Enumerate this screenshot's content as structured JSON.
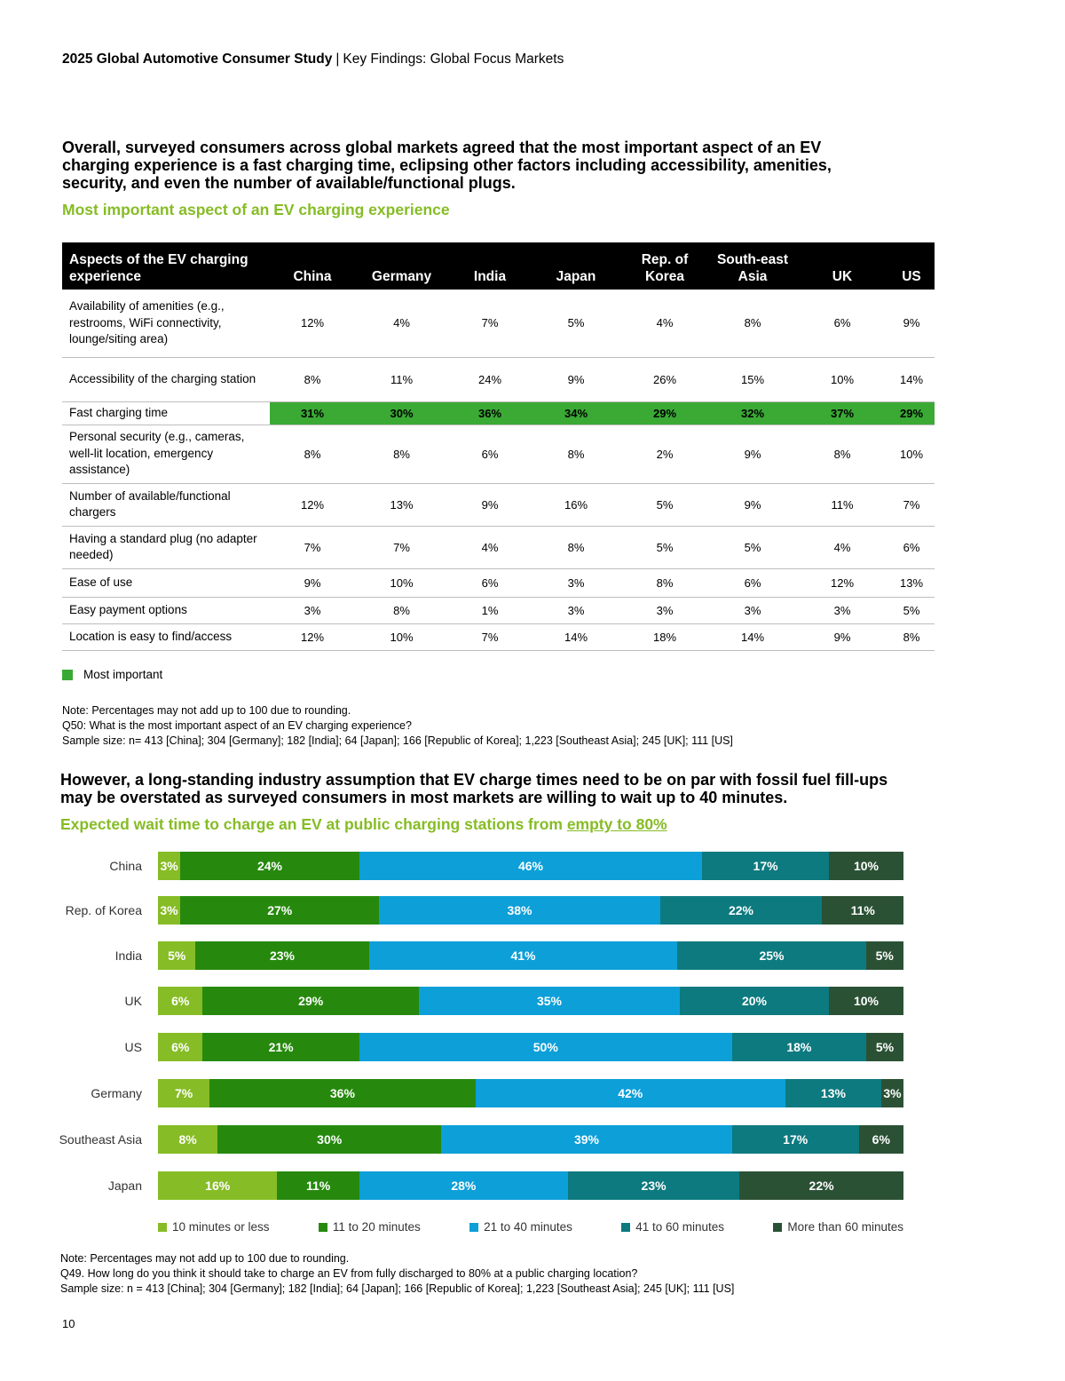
{
  "header": {
    "study": "2025 Global Automotive Consumer Study",
    "separator": "|",
    "section": "Key Findings: Global Focus Markets"
  },
  "intro1": "Overall, surveyed consumers across global markets agreed that the most important aspect of an EV charging experience is a fast charging time, eclipsing other factors including accessibility, amenities, security, and even the number of available/functional plugs.",
  "table_title": "Most important aspect of an EV charging experience",
  "table": {
    "header_first": "Aspects of the EV charging experience",
    "columns": [
      "China",
      "Germany",
      "India",
      "Japan",
      "Rep. of Korea",
      "South-east Asia",
      "UK",
      "US"
    ],
    "rows": [
      {
        "label": "Availability of amenities (e.g., restrooms, WiFi connectivity, lounge/siting area)",
        "values": [
          "12%",
          "4%",
          "7%",
          "5%",
          "4%",
          "8%",
          "6%",
          "9%"
        ]
      },
      {
        "label": "Accessibility of the charging station",
        "values": [
          "8%",
          "11%",
          "24%",
          "9%",
          "26%",
          "15%",
          "10%",
          "14%"
        ]
      },
      {
        "label": "Fast charging time",
        "values": [
          "31%",
          "30%",
          "36%",
          "34%",
          "29%",
          "32%",
          "37%",
          "29%"
        ],
        "highlight": true
      },
      {
        "label": "Personal security (e.g., cameras, well-lit location, emergency assistance)",
        "values": [
          "8%",
          "8%",
          "6%",
          "8%",
          "2%",
          "9%",
          "8%",
          "10%"
        ]
      },
      {
        "label": "Number of available/functional chargers",
        "values": [
          "12%",
          "13%",
          "9%",
          "16%",
          "5%",
          "9%",
          "11%",
          "7%"
        ]
      },
      {
        "label": "Having a standard plug (no adapter needed)",
        "values": [
          "7%",
          "7%",
          "4%",
          "8%",
          "5%",
          "5%",
          "4%",
          "6%"
        ]
      },
      {
        "label": "Ease of use",
        "values": [
          "9%",
          "10%",
          "6%",
          "3%",
          "8%",
          "6%",
          "12%",
          "13%"
        ]
      },
      {
        "label": "Easy payment options",
        "values": [
          "3%",
          "8%",
          "1%",
          "3%",
          "3%",
          "3%",
          "3%",
          "5%"
        ]
      },
      {
        "label": "Location is easy to find/access",
        "values": [
          "12%",
          "10%",
          "7%",
          "14%",
          "18%",
          "14%",
          "9%",
          "8%"
        ]
      }
    ]
  },
  "legend1": {
    "label": "Most important",
    "color": "#3AAA35"
  },
  "note1": {
    "line1": "Note: Percentages may not add up to 100 due to rounding.",
    "line2": "Q50: What is the most important aspect of an EV charging experience?",
    "line3": "Sample size: n= 413 [China]; 304 [Germany]; 182 [India]; 64 [Japan]; 166 [Republic of Korea]; 1,223 [Southeast Asia]; 245 [UK]; 111 [US]"
  },
  "intro2": "However, a long-standing industry assumption that EV charge times need to be on par with fossil fuel fill-ups may be overstated as surveyed consumers in most markets are willing to wait up to 40 minutes.",
  "chart_title": {
    "main": "Expected wait time to charge an EV at public charging stations from ",
    "underlined": "empty to 80%"
  },
  "chart_data": {
    "type": "bar",
    "orientation": "horizontal",
    "stacked": true,
    "title": "Expected wait time to charge an EV at public charging stations from empty to 80%",
    "categories": [
      "China",
      "Rep. of Korea",
      "India",
      "UK",
      "US",
      "Germany",
      "Southeast Asia",
      "Japan"
    ],
    "series": [
      {
        "name": "10 minutes or less",
        "color": "#86BC25",
        "values": [
          3,
          3,
          5,
          6,
          6,
          7,
          8,
          16
        ]
      },
      {
        "name": "11 to 20 minutes",
        "color": "#26890D",
        "values": [
          24,
          27,
          23,
          29,
          21,
          36,
          30,
          11
        ]
      },
      {
        "name": "21 to 40 minutes",
        "color": "#0D9FD8",
        "values": [
          46,
          38,
          41,
          35,
          50,
          42,
          39,
          28
        ]
      },
      {
        "name": "41 to 60 minutes",
        "color": "#0D7A7F",
        "values": [
          17,
          22,
          25,
          20,
          18,
          13,
          17,
          23
        ]
      },
      {
        "name": "More than 60 minutes",
        "color": "#2B5135",
        "values": [
          10,
          11,
          5,
          10,
          5,
          3,
          6,
          22
        ]
      }
    ],
    "labels": [
      [
        "3%",
        "24%",
        "46%",
        "17%",
        "10%"
      ],
      [
        "3%",
        "27%",
        "38%",
        "22%",
        "11%"
      ],
      [
        "5%",
        "23%",
        "41%",
        "25%",
        "5%"
      ],
      [
        "6%",
        "29%",
        "35%",
        "20%",
        "10%"
      ],
      [
        "6%",
        "21%",
        "50%",
        "18%",
        "5%"
      ],
      [
        "7%",
        "36%",
        "42%",
        "13%",
        "3%"
      ],
      [
        "8%",
        "30%",
        "39%",
        "17%",
        "6%"
      ],
      [
        "16%",
        "11%",
        "28%",
        "23%",
        "22%"
      ]
    ],
    "xlim": [
      0,
      100
    ],
    "legend": "bottom"
  },
  "note2": {
    "line1": "Note: Percentages may not add up to 100 due to rounding.",
    "line2": "Q49. How long do you think it should take to charge an EV from fully discharged to 80% at a public charging location?",
    "line3": "Sample size: n = 413 [China]; 304 [Germany]; 182 [India]; 64 [Japan]; 166 [Republic of Korea]; 1,223 [Southeast Asia]; 245 [UK]; 111 [US]"
  },
  "page_number": "10"
}
